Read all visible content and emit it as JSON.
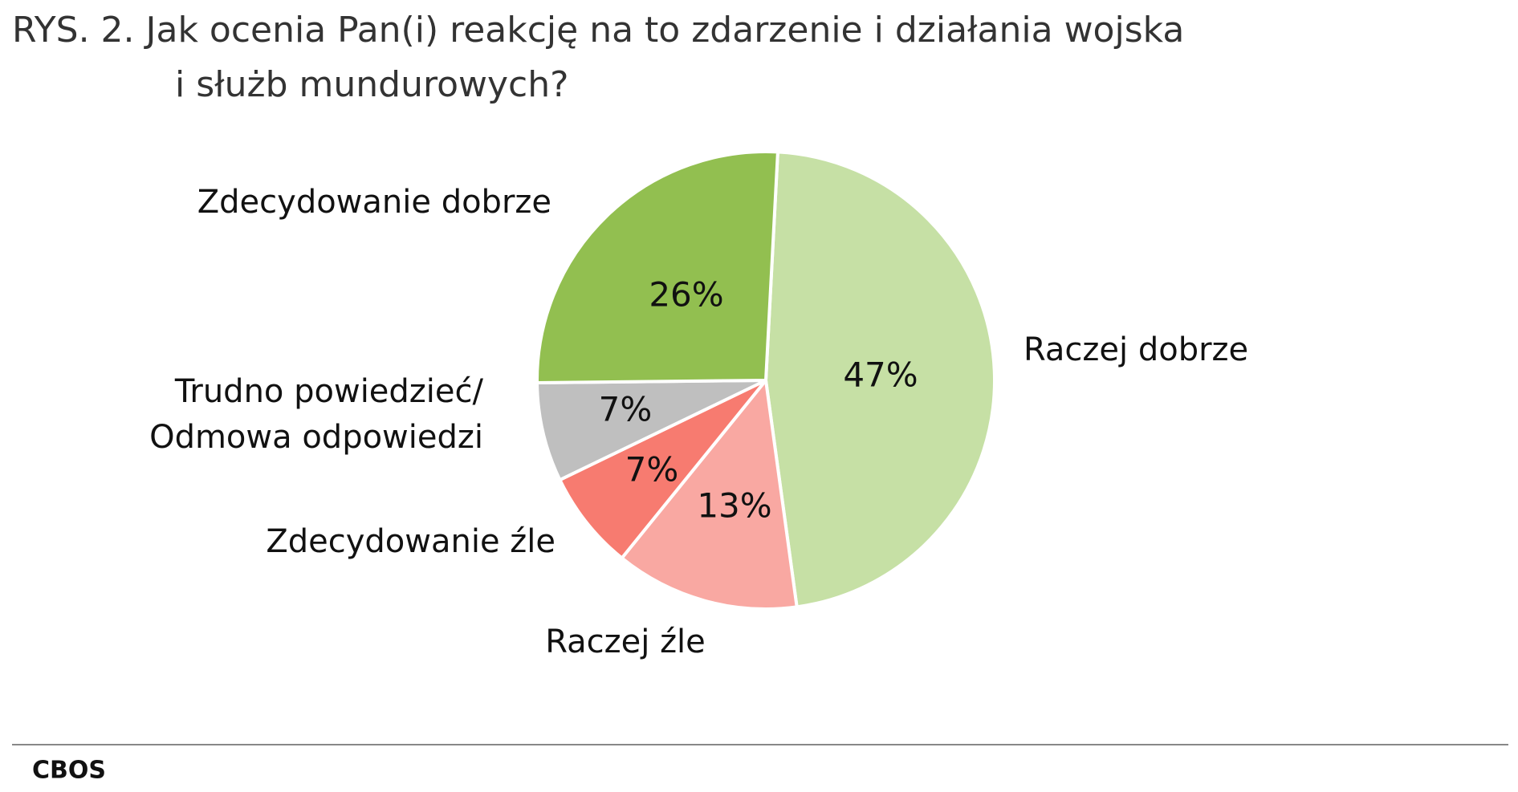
{
  "chart_data": {
    "type": "pie",
    "title": [
      "RYS. 2. Jak ocenia Pan(i) reakcję na to zdarzenie i działania wojska",
      "i służb mundurowych?"
    ],
    "categories": [
      "Raczej dobrze",
      "Raczej źle",
      "Zdecydowanie źle",
      "Trudno powiedzieć/\nOdmowa odpowiedzi",
      "Zdecydowanie dobrze"
    ],
    "values": [
      47,
      13,
      7,
      7,
      26
    ],
    "value_labels": [
      "47%",
      "13%",
      "7%",
      "7%",
      "26%"
    ],
    "colors": [
      "#c6e0a5",
      "#f9a8a2",
      "#f77b70",
      "#bfbfbf",
      "#92bf50"
    ],
    "source": "CBOS"
  }
}
